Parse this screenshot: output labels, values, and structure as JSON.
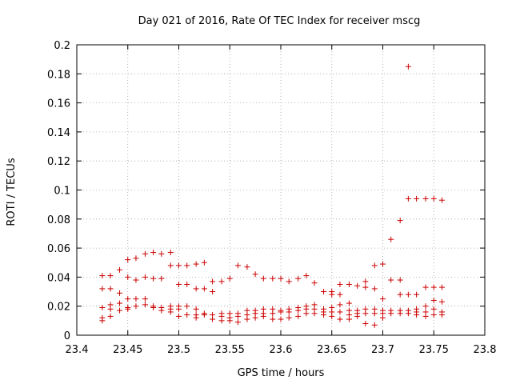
{
  "chart_data": {
    "type": "scatter",
    "title": "Day 021 of 2016, Rate Of TEC Index for receiver mscg",
    "xlabel": "GPS time / hours",
    "ylabel": "ROTI / TECUs",
    "xlim": [
      23.4,
      23.8
    ],
    "ylim": [
      0,
      0.2
    ],
    "grid": true,
    "marker": "+",
    "color": "#cc0000",
    "x_ticks": [
      "23.4",
      "23.45",
      "23.5",
      "23.55",
      "23.6",
      "23.65",
      "23.7",
      "23.75",
      "23.8"
    ],
    "y_ticks": [
      "0",
      "0.02",
      "0.04",
      "0.06",
      "0.08",
      "0.1",
      "0.12",
      "0.14",
      "0.16",
      "0.18",
      "0.2"
    ],
    "series": [
      {
        "name": "ROTI",
        "points": [
          [
            23.425,
            0.041
          ],
          [
            23.425,
            0.032
          ],
          [
            23.425,
            0.019
          ],
          [
            23.425,
            0.012
          ],
          [
            23.425,
            0.01
          ],
          [
            23.433,
            0.041
          ],
          [
            23.433,
            0.032
          ],
          [
            23.433,
            0.021
          ],
          [
            23.433,
            0.018
          ],
          [
            23.433,
            0.013
          ],
          [
            23.442,
            0.045
          ],
          [
            23.442,
            0.029
          ],
          [
            23.442,
            0.022
          ],
          [
            23.442,
            0.017
          ],
          [
            23.45,
            0.052
          ],
          [
            23.45,
            0.04
          ],
          [
            23.45,
            0.025
          ],
          [
            23.45,
            0.019
          ],
          [
            23.45,
            0.018
          ],
          [
            23.458,
            0.053
          ],
          [
            23.458,
            0.038
          ],
          [
            23.458,
            0.025
          ],
          [
            23.458,
            0.02
          ],
          [
            23.467,
            0.056
          ],
          [
            23.467,
            0.04
          ],
          [
            23.467,
            0.025
          ],
          [
            23.467,
            0.021
          ],
          [
            23.475,
            0.057
          ],
          [
            23.475,
            0.039
          ],
          [
            23.475,
            0.02
          ],
          [
            23.475,
            0.019
          ],
          [
            23.483,
            0.056
          ],
          [
            23.483,
            0.039
          ],
          [
            23.483,
            0.019
          ],
          [
            23.483,
            0.017
          ],
          [
            23.492,
            0.057
          ],
          [
            23.492,
            0.048
          ],
          [
            23.492,
            0.02
          ],
          [
            23.492,
            0.018
          ],
          [
            23.492,
            0.016
          ],
          [
            23.5,
            0.048
          ],
          [
            23.5,
            0.035
          ],
          [
            23.5,
            0.02
          ],
          [
            23.5,
            0.018
          ],
          [
            23.5,
            0.013
          ],
          [
            23.508,
            0.048
          ],
          [
            23.508,
            0.035
          ],
          [
            23.508,
            0.02
          ],
          [
            23.508,
            0.014
          ],
          [
            23.517,
            0.049
          ],
          [
            23.517,
            0.032
          ],
          [
            23.517,
            0.018
          ],
          [
            23.517,
            0.014
          ],
          [
            23.517,
            0.012
          ],
          [
            23.525,
            0.05
          ],
          [
            23.525,
            0.032
          ],
          [
            23.525,
            0.015
          ],
          [
            23.525,
            0.014
          ],
          [
            23.533,
            0.037
          ],
          [
            23.533,
            0.03
          ],
          [
            23.533,
            0.014
          ],
          [
            23.533,
            0.011
          ],
          [
            23.542,
            0.037
          ],
          [
            23.542,
            0.015
          ],
          [
            23.542,
            0.013
          ],
          [
            23.542,
            0.01
          ],
          [
            23.55,
            0.039
          ],
          [
            23.55,
            0.015
          ],
          [
            23.55,
            0.012
          ],
          [
            23.55,
            0.01
          ],
          [
            23.558,
            0.048
          ],
          [
            23.558,
            0.015
          ],
          [
            23.558,
            0.013
          ],
          [
            23.558,
            0.009
          ],
          [
            23.567,
            0.047
          ],
          [
            23.567,
            0.017
          ],
          [
            23.567,
            0.014
          ],
          [
            23.567,
            0.011
          ],
          [
            23.575,
            0.042
          ],
          [
            23.575,
            0.017
          ],
          [
            23.575,
            0.015
          ],
          [
            23.575,
            0.012
          ],
          [
            23.583,
            0.039
          ],
          [
            23.583,
            0.018
          ],
          [
            23.583,
            0.015
          ],
          [
            23.583,
            0.013
          ],
          [
            23.592,
            0.039
          ],
          [
            23.592,
            0.018
          ],
          [
            23.592,
            0.015
          ],
          [
            23.592,
            0.011
          ],
          [
            23.6,
            0.039
          ],
          [
            23.6,
            0.017
          ],
          [
            23.6,
            0.016
          ],
          [
            23.6,
            0.011
          ],
          [
            23.608,
            0.037
          ],
          [
            23.608,
            0.018
          ],
          [
            23.608,
            0.016
          ],
          [
            23.608,
            0.012
          ],
          [
            23.617,
            0.039
          ],
          [
            23.617,
            0.019
          ],
          [
            23.617,
            0.017
          ],
          [
            23.617,
            0.013
          ],
          [
            23.625,
            0.041
          ],
          [
            23.625,
            0.02
          ],
          [
            23.625,
            0.018
          ],
          [
            23.625,
            0.015
          ],
          [
            23.633,
            0.036
          ],
          [
            23.633,
            0.021
          ],
          [
            23.633,
            0.018
          ],
          [
            23.633,
            0.015
          ],
          [
            23.642,
            0.03
          ],
          [
            23.642,
            0.018
          ],
          [
            23.642,
            0.016
          ],
          [
            23.642,
            0.014
          ],
          [
            23.65,
            0.03
          ],
          [
            23.65,
            0.028
          ],
          [
            23.65,
            0.019
          ],
          [
            23.65,
            0.016
          ],
          [
            23.65,
            0.013
          ],
          [
            23.658,
            0.035
          ],
          [
            23.658,
            0.028
          ],
          [
            23.658,
            0.021
          ],
          [
            23.658,
            0.016
          ],
          [
            23.658,
            0.011
          ],
          [
            23.667,
            0.035
          ],
          [
            23.667,
            0.022
          ],
          [
            23.667,
            0.017
          ],
          [
            23.667,
            0.014
          ],
          [
            23.667,
            0.011
          ],
          [
            23.675,
            0.034
          ],
          [
            23.675,
            0.017
          ],
          [
            23.675,
            0.015
          ],
          [
            23.675,
            0.013
          ],
          [
            23.683,
            0.037
          ],
          [
            23.683,
            0.033
          ],
          [
            23.683,
            0.018
          ],
          [
            23.683,
            0.015
          ],
          [
            23.683,
            0.008
          ],
          [
            23.692,
            0.048
          ],
          [
            23.692,
            0.032
          ],
          [
            23.692,
            0.018
          ],
          [
            23.692,
            0.015
          ],
          [
            23.692,
            0.007
          ],
          [
            23.7,
            0.049
          ],
          [
            23.7,
            0.025
          ],
          [
            23.7,
            0.017
          ],
          [
            23.7,
            0.015
          ],
          [
            23.7,
            0.012
          ],
          [
            23.708,
            0.066
          ],
          [
            23.708,
            0.038
          ],
          [
            23.708,
            0.017
          ],
          [
            23.708,
            0.015
          ],
          [
            23.717,
            0.079
          ],
          [
            23.717,
            0.038
          ],
          [
            23.717,
            0.028
          ],
          [
            23.717,
            0.017
          ],
          [
            23.717,
            0.015
          ],
          [
            23.725,
            0.185
          ],
          [
            23.725,
            0.094
          ],
          [
            23.725,
            0.028
          ],
          [
            23.725,
            0.017
          ],
          [
            23.725,
            0.015
          ],
          [
            23.733,
            0.094
          ],
          [
            23.733,
            0.028
          ],
          [
            23.733,
            0.018
          ],
          [
            23.733,
            0.016
          ],
          [
            23.733,
            0.014
          ],
          [
            23.742,
            0.094
          ],
          [
            23.742,
            0.033
          ],
          [
            23.742,
            0.02
          ],
          [
            23.742,
            0.016
          ],
          [
            23.742,
            0.013
          ],
          [
            23.75,
            0.094
          ],
          [
            23.75,
            0.033
          ],
          [
            23.75,
            0.024
          ],
          [
            23.75,
            0.018
          ],
          [
            23.75,
            0.014
          ],
          [
            23.758,
            0.093
          ],
          [
            23.758,
            0.033
          ],
          [
            23.758,
            0.023
          ],
          [
            23.758,
            0.016
          ],
          [
            23.758,
            0.014
          ]
        ]
      }
    ]
  }
}
